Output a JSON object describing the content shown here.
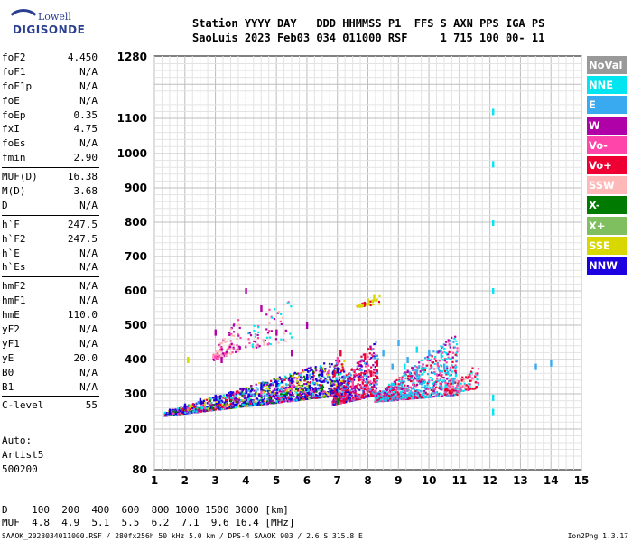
{
  "logo": {
    "line1": "Lowell",
    "line2": "DIGISONDE"
  },
  "header": {
    "labels": [
      "Station",
      "YYYY",
      "DAY",
      "DDD",
      "HHMMSS",
      "P1",
      "FFS",
      "S",
      "AXN",
      "PPS",
      "IGA",
      "PS"
    ],
    "values": [
      "SaoLuis",
      "2023",
      "Feb03",
      "034",
      "011000",
      "RSF",
      "1",
      "715",
      "100",
      "00-",
      "11"
    ]
  },
  "params": [
    {
      "k": "foF2",
      "v": "4.450"
    },
    {
      "k": "foF1",
      "v": "N/A"
    },
    {
      "k": "foF1p",
      "v": "N/A"
    },
    {
      "k": "foE",
      "v": "N/A"
    },
    {
      "k": "foEp",
      "v": "0.35"
    },
    {
      "k": "fxI",
      "v": "4.75"
    },
    {
      "k": "foEs",
      "v": "N/A"
    },
    {
      "k": "fmin",
      "v": "2.90"
    },
    {
      "k": "MUF(D)",
      "v": "16.38"
    },
    {
      "k": "M(D)",
      "v": "3.68"
    },
    {
      "k": "D",
      "v": "N/A"
    },
    {
      "k": "h`F",
      "v": "247.5"
    },
    {
      "k": "h`F2",
      "v": "247.5"
    },
    {
      "k": "h`E",
      "v": "N/A"
    },
    {
      "k": "h`Es",
      "v": "N/A"
    },
    {
      "k": "hmF2",
      "v": "N/A"
    },
    {
      "k": "hmF1",
      "v": "N/A"
    },
    {
      "k": "hmE",
      "v": "110.0"
    },
    {
      "k": "yF2",
      "v": "N/A"
    },
    {
      "k": "yF1",
      "v": "N/A"
    },
    {
      "k": "yE",
      "v": "20.0"
    },
    {
      "k": "B0",
      "v": "N/A"
    },
    {
      "k": "B1",
      "v": "N/A"
    },
    {
      "k": "C-level",
      "v": "55"
    }
  ],
  "auto": [
    "Auto:",
    "Artist5",
    "500200"
  ],
  "legend": [
    {
      "label": "NoVal",
      "color": "#999999"
    },
    {
      "label": "NNE",
      "color": "#00e5f0"
    },
    {
      "label": "E",
      "color": "#3aaaf0"
    },
    {
      "label": "W",
      "color": "#b000a8"
    },
    {
      "label": "Vo-",
      "color": "#ff44aa"
    },
    {
      "label": "Vo+",
      "color": "#ee0033"
    },
    {
      "label": "SSW",
      "color": "#ffb8b8"
    },
    {
      "label": "X-",
      "color": "#007a00"
    },
    {
      "label": "X+",
      "color": "#7fbf5f"
    },
    {
      "label": "SSE",
      "color": "#d8d800"
    },
    {
      "label": "NNW",
      "color": "#1c00e0"
    }
  ],
  "bottom": {
    "d_line": "D    100  200  400  600  800 1000 1500 3000 [km]",
    "muf_line": "MUF  4.8  4.9  5.1  5.5  6.2  7.1  9.6 16.4 [MHz]"
  },
  "footer": {
    "left": "SAAOK_2023034011000.RSF / 280fx256h 50 kHz 5.0 km / DPS-4 SAAOK 903 / 2.6 S 315.8 E",
    "right": "Ion2Png 1.3.17"
  },
  "chart_data": {
    "type": "scatter",
    "xlim": [
      1,
      15
    ],
    "x_ticks": [
      1,
      2,
      3,
      4,
      5,
      6,
      7,
      8,
      9,
      10,
      11,
      12,
      13,
      14,
      15
    ],
    "ylim": [
      80,
      1280
    ],
    "y_ticks": [
      80,
      200,
      300,
      400,
      500,
      600,
      700,
      800,
      900,
      1000,
      1100,
      1280
    ],
    "grid": true,
    "legend_position": "right",
    "series": [
      {
        "name": "NNE",
        "color": "#00e5f0",
        "points": [
          [
            12.1,
            1120
          ],
          [
            12.1,
            970
          ],
          [
            12.1,
            800
          ],
          [
            12.1,
            600
          ],
          [
            12.1,
            290
          ],
          [
            12.1,
            250
          ],
          [
            9.6,
            430
          ],
          [
            9.2,
            380
          ],
          [
            10.4,
            420
          ]
        ]
      },
      {
        "name": "E",
        "color": "#3aaaf0",
        "points": [
          [
            8.5,
            420
          ],
          [
            8.8,
            380
          ],
          [
            9.0,
            450
          ],
          [
            9.3,
            400
          ],
          [
            9.6,
            360
          ],
          [
            10.0,
            420
          ],
          [
            10.5,
            380
          ],
          [
            10.8,
            340
          ],
          [
            11.0,
            310
          ],
          [
            13.5,
            380
          ],
          [
            14.0,
            390
          ]
        ]
      },
      {
        "name": "W",
        "color": "#b000a8",
        "points": [
          [
            3.0,
            480
          ],
          [
            3.2,
            400
          ],
          [
            4.0,
            600
          ],
          [
            4.5,
            550
          ],
          [
            5.0,
            480
          ],
          [
            5.5,
            420
          ],
          [
            6.0,
            500
          ]
        ]
      },
      {
        "name": "Vo-",
        "color": "#ff44aa",
        "points": [
          [
            3.5,
            300
          ],
          [
            4.5,
            310
          ],
          [
            5.5,
            320
          ],
          [
            7.0,
            400
          ],
          [
            7.5,
            330
          ]
        ]
      },
      {
        "name": "Vo+",
        "color": "#ee0033",
        "points": [
          [
            7.9,
            410
          ],
          [
            8.1,
            360
          ],
          [
            8.3,
            390
          ],
          [
            6.9,
            360
          ],
          [
            7.1,
            420
          ]
        ]
      },
      {
        "name": "X-",
        "color": "#007a00",
        "points": [
          [
            6.5,
            320
          ],
          [
            7.0,
            280
          ]
        ]
      },
      {
        "name": "SSE",
        "color": "#d8d800",
        "points": [
          [
            8.0,
            570
          ],
          [
            8.2,
            580
          ],
          [
            2.1,
            400
          ]
        ]
      },
      {
        "name": "NNW",
        "color": "#1c00e0",
        "points": [
          [
            1.5,
            250
          ],
          [
            2.0,
            265
          ],
          [
            2.5,
            280
          ],
          [
            3.0,
            290
          ],
          [
            3.5,
            300
          ],
          [
            4.0,
            310
          ],
          [
            4.5,
            320
          ],
          [
            5.0,
            330
          ],
          [
            5.5,
            340
          ],
          [
            6.0,
            350
          ],
          [
            6.5,
            360
          ],
          [
            7.0,
            370
          ]
        ]
      }
    ]
  }
}
